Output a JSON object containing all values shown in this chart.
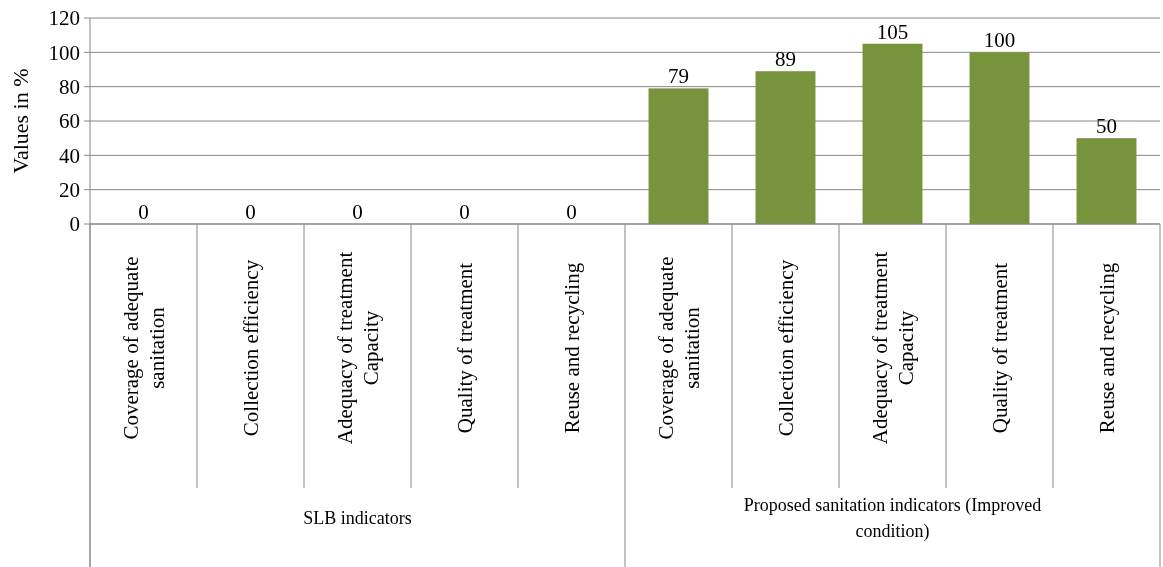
{
  "chart_data": {
    "type": "bar",
    "ylabel": "Values in %",
    "categories": [
      "Coverage of adequate sanitation",
      "Collection efficiency",
      "Adequacy of treatment Capacity",
      "Quality of treatment",
      "Reuse and recycling",
      "Coverage of adequate sanitation",
      "Collection efficiency",
      "Adequacy of treatment Capacity",
      "Quality of treatment",
      "Reuse and recycling"
    ],
    "values": [
      0,
      0,
      0,
      0,
      0,
      79,
      89,
      105,
      100,
      50
    ],
    "color": "#77933c",
    "ylim": [
      0,
      120
    ],
    "yticks": [
      0,
      20,
      40,
      60,
      80,
      100,
      120
    ],
    "grid": "y",
    "data_labels": true,
    "annotations": [
      "SLB indicators",
      "Proposed sanitation indicators (Improved condition)"
    ]
  }
}
